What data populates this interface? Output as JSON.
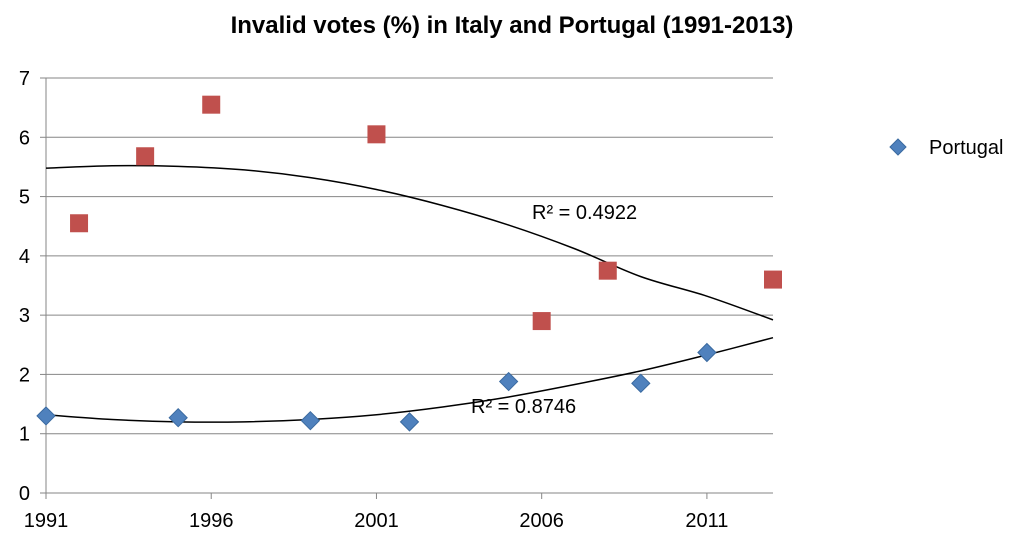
{
  "chart_data": {
    "type": "scatter",
    "title": "Invalid votes (%) in Italy and Portugal (1991-2013)",
    "xlabel": "",
    "ylabel": "",
    "xlim": [
      1991,
      2013
    ],
    "ylim": [
      0,
      7
    ],
    "x_ticks": [
      1991,
      1996,
      2001,
      2006,
      2011
    ],
    "y_ticks": [
      0,
      1,
      2,
      3,
      4,
      5,
      6,
      7
    ],
    "grid": "horizontal",
    "legend_position": "right",
    "series": [
      {
        "key": "portugal",
        "name": "Portugal",
        "color": "#4F81BD",
        "marker": "diamond",
        "points": [
          {
            "x": 1991,
            "y": 1.3
          },
          {
            "x": 1995,
            "y": 1.27
          },
          {
            "x": 1999,
            "y": 1.22
          },
          {
            "x": 2002,
            "y": 1.2
          },
          {
            "x": 2005,
            "y": 1.88
          },
          {
            "x": 2009,
            "y": 1.85
          },
          {
            "x": 2011,
            "y": 2.37
          }
        ],
        "trendline": {
          "type": "polynomial",
          "r2_label": "R² = 0.8746",
          "curve": [
            {
              "x": 1991,
              "y": 1.32
            },
            {
              "x": 1993,
              "y": 1.24
            },
            {
              "x": 1995,
              "y": 1.2
            },
            {
              "x": 1997,
              "y": 1.2
            },
            {
              "x": 1999,
              "y": 1.24
            },
            {
              "x": 2001,
              "y": 1.32
            },
            {
              "x": 2003,
              "y": 1.45
            },
            {
              "x": 2005,
              "y": 1.62
            },
            {
              "x": 2007,
              "y": 1.83
            },
            {
              "x": 2009,
              "y": 2.06
            },
            {
              "x": 2011,
              "y": 2.33
            },
            {
              "x": 2013,
              "y": 2.62
            }
          ]
        }
      },
      {
        "key": "italy",
        "color": "#C0504D",
        "marker": "square",
        "points": [
          {
            "x": 1992,
            "y": 4.55
          },
          {
            "x": 1994,
            "y": 5.68
          },
          {
            "x": 1996,
            "y": 6.55
          },
          {
            "x": 2001,
            "y": 6.05
          },
          {
            "x": 2006,
            "y": 2.9
          },
          {
            "x": 2008,
            "y": 3.75
          },
          {
            "x": 2013,
            "y": 3.6
          }
        ],
        "trendline": {
          "type": "polynomial",
          "r2_label": "R² = 0.4922",
          "curve": [
            {
              "x": 1991,
              "y": 5.48
            },
            {
              "x": 1993,
              "y": 5.52
            },
            {
              "x": 1995,
              "y": 5.51
            },
            {
              "x": 1997,
              "y": 5.45
            },
            {
              "x": 1999,
              "y": 5.32
            },
            {
              "x": 2001,
              "y": 5.12
            },
            {
              "x": 2003,
              "y": 4.85
            },
            {
              "x": 2005,
              "y": 4.52
            },
            {
              "x": 2007,
              "y": 4.12
            },
            {
              "x": 2009,
              "y": 3.65
            },
            {
              "x": 2011,
              "y": 3.32
            },
            {
              "x": 2013,
              "y": 2.92
            }
          ]
        }
      }
    ]
  }
}
